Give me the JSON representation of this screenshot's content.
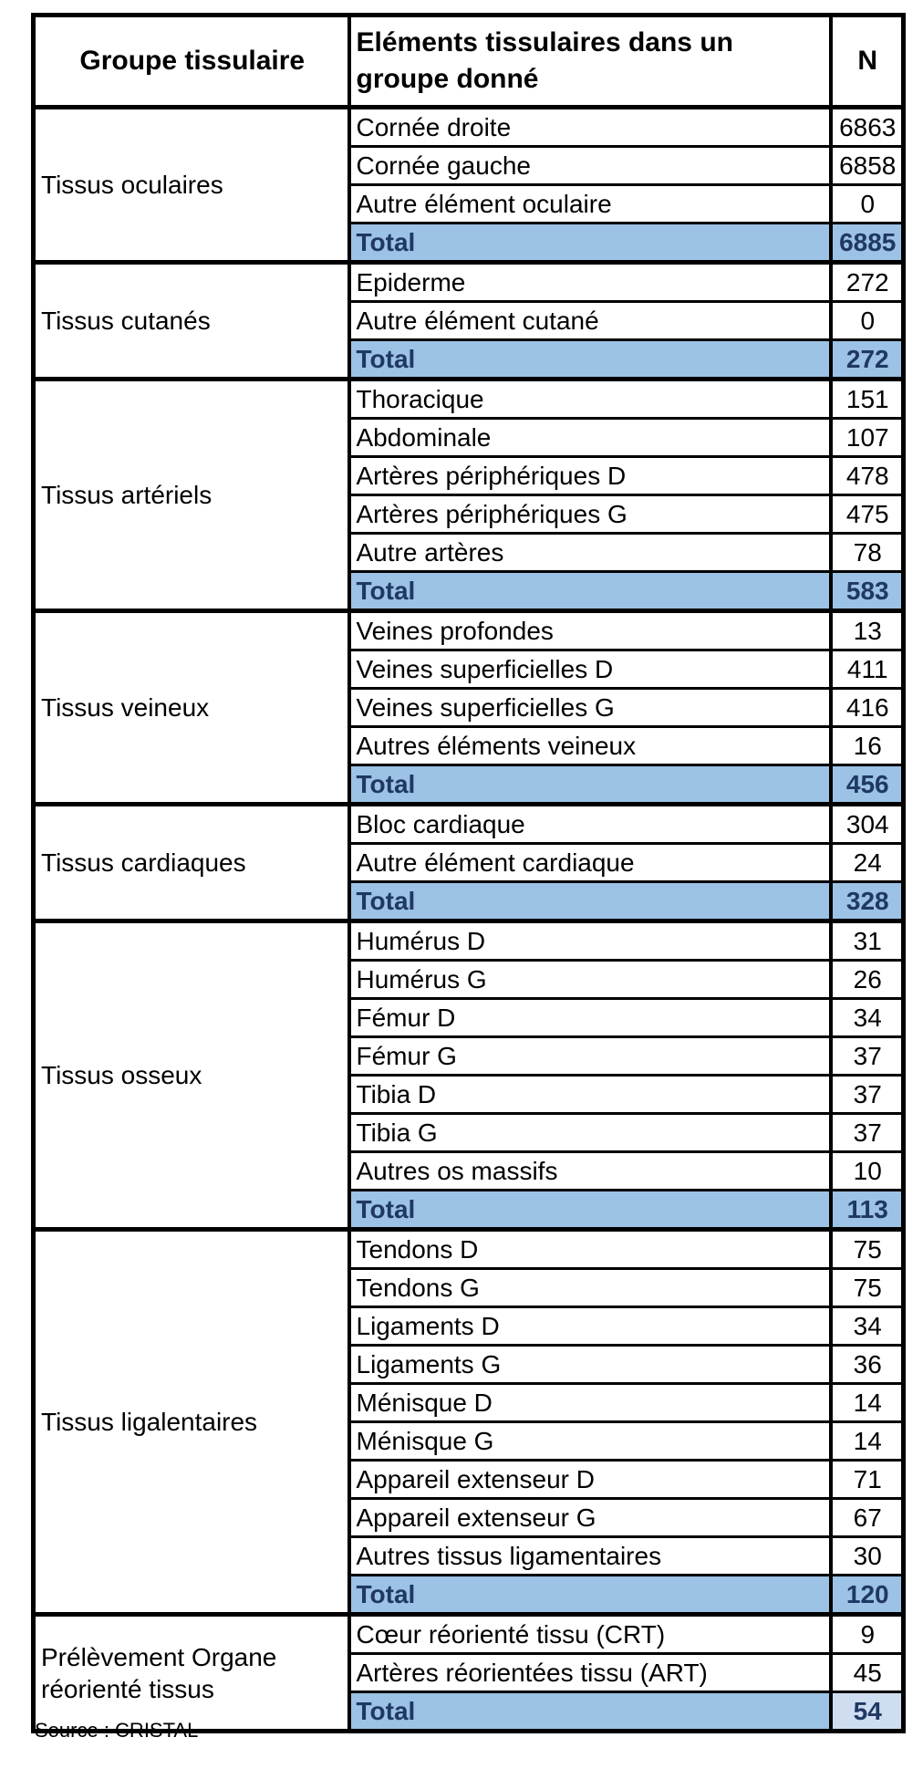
{
  "header": {
    "group_col": "Groupe tissulaire",
    "element_col": "Eléments tissulaires dans un groupe donné",
    "n_col": "N"
  },
  "total_label": "Total",
  "groups": [
    {
      "name": "Tissus oculaires",
      "rows": [
        {
          "label": "Cornée droite",
          "n": "6863"
        },
        {
          "label": "Cornée gauche",
          "n": "6858"
        },
        {
          "label": "Autre élément oculaire",
          "n": "0"
        }
      ],
      "total_n": "6885",
      "total_n_light": false
    },
    {
      "name": "Tissus cutanés",
      "rows": [
        {
          "label": "Epiderme",
          "n": "272"
        },
        {
          "label": "Autre élément cutané",
          "n": "0"
        }
      ],
      "total_n": "272",
      "total_n_light": false
    },
    {
      "name": "Tissus artériels",
      "rows": [
        {
          "label": "Thoracique",
          "n": "151"
        },
        {
          "label": "Abdominale",
          "n": "107"
        },
        {
          "label": "Artères périphériques D",
          "n": "478"
        },
        {
          "label": "Artères périphériques G",
          "n": "475"
        },
        {
          "label": "Autre artères",
          "n": "78"
        }
      ],
      "total_n": "583",
      "total_n_light": false
    },
    {
      "name": "Tissus veineux",
      "rows": [
        {
          "label": "Veines profondes",
          "n": "13"
        },
        {
          "label": "Veines superficielles D",
          "n": "411"
        },
        {
          "label": "Veines superficielles G",
          "n": "416"
        },
        {
          "label": "Autres éléments veineux",
          "n": "16"
        }
      ],
      "total_n": "456",
      "total_n_light": false
    },
    {
      "name": "Tissus cardiaques",
      "rows": [
        {
          "label": "Bloc cardiaque",
          "n": "304"
        },
        {
          "label": "Autre élément cardiaque",
          "n": "24"
        }
      ],
      "total_n": "328",
      "total_n_light": false
    },
    {
      "name": "Tissus osseux",
      "rows": [
        {
          "label": "Humérus D",
          "n": "31"
        },
        {
          "label": "Humérus G",
          "n": "26"
        },
        {
          "label": "Fémur D",
          "n": "34"
        },
        {
          "label": "Fémur G",
          "n": "37"
        },
        {
          "label": "Tibia D",
          "n": "37"
        },
        {
          "label": "Tibia G",
          "n": "37"
        },
        {
          "label": "Autres os massifs",
          "n": "10"
        }
      ],
      "total_n": "113",
      "total_n_light": false
    },
    {
      "name": "Tissus ligalentaires",
      "rows": [
        {
          "label": "Tendons D",
          "n": "75"
        },
        {
          "label": "Tendons G",
          "n": "75"
        },
        {
          "label": "Ligaments D",
          "n": "34"
        },
        {
          "label": "Ligaments G",
          "n": "36"
        },
        {
          "label": "Ménisque D",
          "n": "14"
        },
        {
          "label": "Ménisque G",
          "n": "14"
        },
        {
          "label": "Appareil extenseur D",
          "n": "71"
        },
        {
          "label": "Appareil extenseur G",
          "n": "67"
        },
        {
          "label": "Autres tissus ligamentaires",
          "n": "30"
        }
      ],
      "total_n": "120",
      "total_n_light": false
    },
    {
      "name": "Prélèvement Organe réorienté tissus",
      "rows": [
        {
          "label": "Cœur réorienté tissu (CRT)",
          "n": "9"
        },
        {
          "label": "Artères réorientées tissu (ART)",
          "n": "45"
        }
      ],
      "total_n": "54",
      "total_n_light": true
    }
  ],
  "source": "Source : CRISTAL",
  "colors": {
    "total_row_bg": "#9CC2E5",
    "total_n_light_bg": "#CFDDF0",
    "total_text": "#1F3864",
    "border": "#000000",
    "page_bg": "#FFFFFF"
  }
}
